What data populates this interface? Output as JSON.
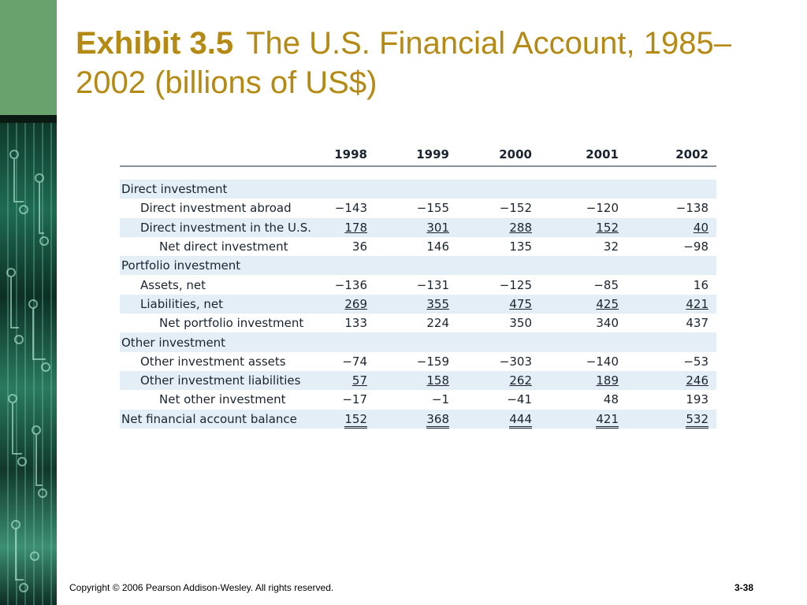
{
  "title": {
    "bold": "Exhibit 3.5",
    "rest": "The U.S. Financial Account, 1985–2002 (billions of US$)"
  },
  "table": {
    "years": [
      "1998",
      "1999",
      "2000",
      "2001",
      "2002"
    ],
    "rows": [
      {
        "label": "Direct investment",
        "indent": 0,
        "shade": true,
        "values": []
      },
      {
        "label": "Direct investment abroad",
        "indent": 1,
        "shade": false,
        "values": [
          "−143",
          "−155",
          "−152",
          "−120",
          "−138"
        ]
      },
      {
        "label": "Direct investment in the U.S.",
        "indent": 1,
        "shade": true,
        "underline": true,
        "values": [
          "178",
          "301",
          "288",
          "152",
          "40"
        ]
      },
      {
        "label": "Net direct investment",
        "indent": 2,
        "shade": false,
        "values": [
          "36",
          "146",
          "135",
          "32",
          "−98"
        ]
      },
      {
        "label": "Portfolio investment",
        "indent": 0,
        "shade": true,
        "values": []
      },
      {
        "label": "Assets, net",
        "indent": 1,
        "shade": false,
        "values": [
          "−136",
          "−131",
          "−125",
          "−85",
          "16"
        ]
      },
      {
        "label": "Liabilities, net",
        "indent": 1,
        "shade": true,
        "underline": true,
        "values": [
          "269",
          "355",
          "475",
          "425",
          "421"
        ]
      },
      {
        "label": "Net portfolio investment",
        "indent": 2,
        "shade": false,
        "values": [
          "133",
          "224",
          "350",
          "340",
          "437"
        ]
      },
      {
        "label": "Other investment",
        "indent": 0,
        "shade": true,
        "values": []
      },
      {
        "label": "Other investment assets",
        "indent": 1,
        "shade": false,
        "values": [
          "−74",
          "−159",
          "−303",
          "−140",
          "−53"
        ]
      },
      {
        "label": "Other investment liabilities",
        "indent": 1,
        "shade": true,
        "underline": true,
        "values": [
          "57",
          "158",
          "262",
          "189",
          "246"
        ]
      },
      {
        "label": "Net other investment",
        "indent": 2,
        "shade": false,
        "values": [
          "−17",
          "−1",
          "−41",
          "48",
          "193"
        ]
      },
      {
        "label": "Net financial account balance",
        "indent": 0,
        "shade": true,
        "double_underline": true,
        "values": [
          "152",
          "368",
          "444",
          "421",
          "532"
        ]
      }
    ]
  },
  "footer": {
    "copyright": "Copyright © 2006 Pearson Addison-Wesley. All rights reserved.",
    "page": "3-38"
  },
  "colors": {
    "title": "#b58a14",
    "shade": "#e3eef6",
    "strip_green": "#6aa26e"
  }
}
